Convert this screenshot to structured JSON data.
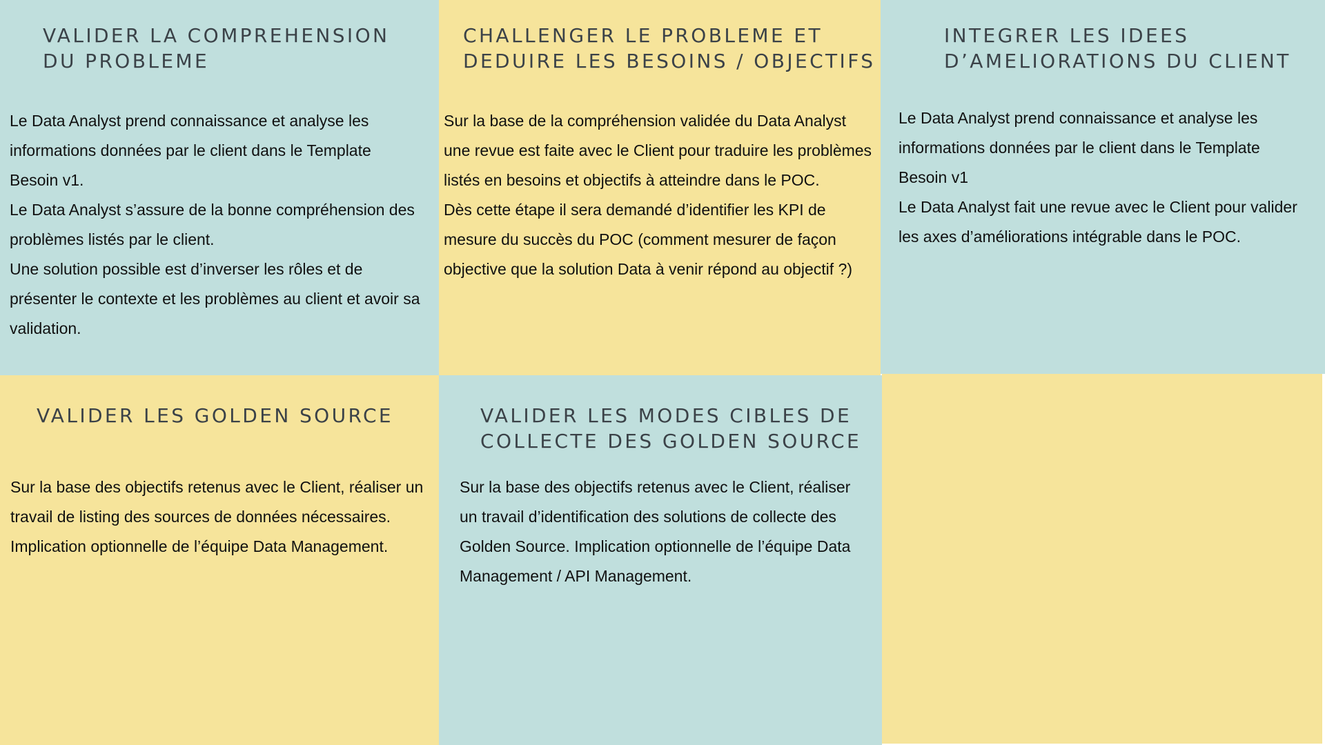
{
  "colors": {
    "teal": "#c0dfdd",
    "yellow": "#f6e49b",
    "title_text": "#3b4248",
    "body_text": "#111111"
  },
  "tiles": [
    {
      "title_line1": "VALIDER LA COMPREHENSION",
      "title_line2": "DU PROBLEME",
      "paragraphs": [
        "Le Data Analyst prend connaissance et analyse les informations données par le client dans le Template Besoin v1.",
        "Le Data Analyst s’assure de la bonne compréhension des problèmes listés par le client.",
        "Une solution possible est d’inverser les rôles et de présenter le contexte et les problèmes au client et avoir sa validation."
      ]
    },
    {
      "title_line1": "CHALLENGER LE PROBLEME ET",
      "title_line2": "DEDUIRE LES BESOINS / OBJECTIFS",
      "paragraphs": [
        "Sur la base de la compréhension validée du Data Analyst une revue est faite avec le Client pour traduire les problèmes listés en besoins et objectifs à atteindre dans le POC.",
        "Dès cette étape il sera demandé d’identifier les KPI de mesure du succès du POC (comment mesurer de façon objective que la solution Data à venir répond au objectif ?)"
      ]
    },
    {
      "title_line1": "INTEGRER LES IDEES",
      "title_line2": "D’AMELIORATIONS DU CLIENT",
      "paragraphs": [
        "Le Data Analyst prend connaissance et analyse les informations données par le client dans le Template Besoin v1",
        "Le Data Analyst fait une revue avec le Client pour valider les axes d’améliorations intégrable dans le POC."
      ]
    },
    {
      "title_line1": "VALIDER LES GOLDEN SOURCE",
      "paragraphs": [
        "Sur la base des objectifs retenus avec le Client, réaliser un travail de listing des sources de données nécessaires. Implication optionnelle de l’équipe Data Management."
      ]
    },
    {
      "title_line1": "VALIDER LES MODES CIBLES DE",
      "title_line2": "COLLECTE DES GOLDEN SOURCE",
      "paragraphs": [
        "Sur la base des objectifs retenus avec le Client, réaliser un travail d’identification des solutions de collecte des Golden Source. Implication optionnelle de l’équipe Data Management / API Management."
      ]
    }
  ]
}
